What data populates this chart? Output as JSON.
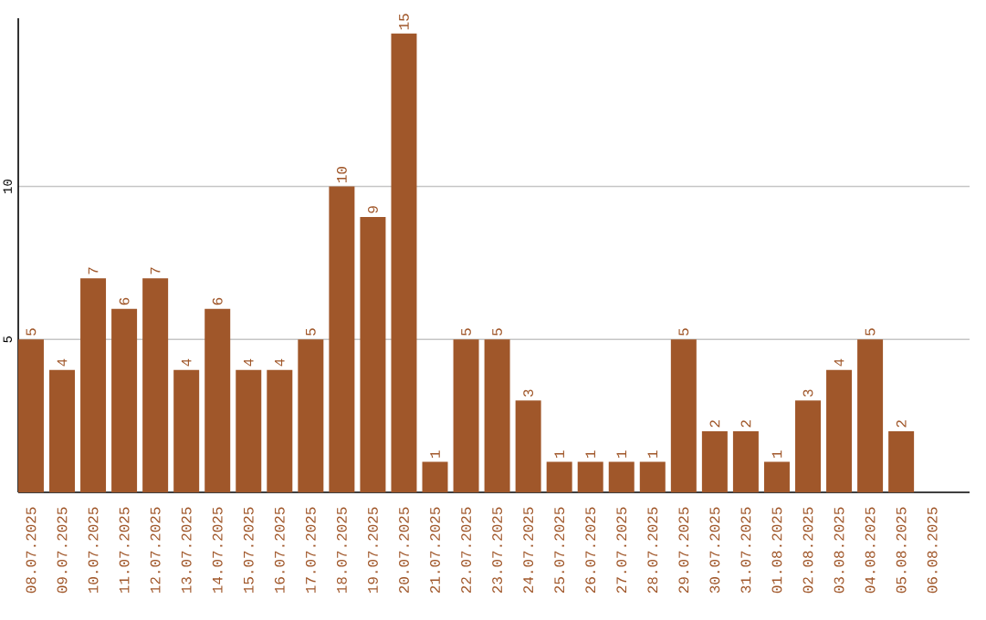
{
  "chart_data": {
    "type": "bar",
    "categories": [
      "08.07.2025",
      "09.07.2025",
      "10.07.2025",
      "11.07.2025",
      "12.07.2025",
      "13.07.2025",
      "14.07.2025",
      "15.07.2025",
      "16.07.2025",
      "17.07.2025",
      "18.07.2025",
      "19.07.2025",
      "20.07.2025",
      "21.07.2025",
      "22.07.2025",
      "23.07.2025",
      "24.07.2025",
      "25.07.2025",
      "26.07.2025",
      "27.07.2025",
      "28.07.2025",
      "29.07.2025",
      "30.07.2025",
      "31.07.2025",
      "01.08.2025",
      "02.08.2025",
      "03.08.2025",
      "04.08.2025",
      "05.08.2025",
      "06.08.2025"
    ],
    "values": [
      5,
      4,
      7,
      6,
      7,
      4,
      6,
      4,
      4,
      5,
      10,
      9,
      15,
      1,
      5,
      5,
      3,
      1,
      1,
      1,
      1,
      5,
      2,
      2,
      1,
      3,
      4,
      5,
      2,
      null
    ],
    "color": "#a0572a",
    "ylim": [
      0,
      15.5
    ],
    "yticks": [
      5,
      10
    ],
    "grid": "y",
    "data_labels": true
  }
}
